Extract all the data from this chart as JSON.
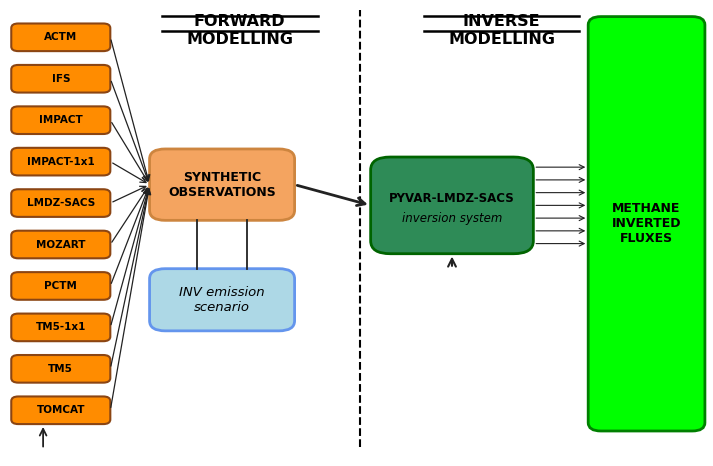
{
  "models": [
    "ACTM",
    "IFS",
    "IMPACT",
    "IMPACT-1x1",
    "LMDZ-SACS",
    "MOZART",
    "PCTM",
    "TM5-1x1",
    "TM5",
    "TOMCAT"
  ],
  "model_color": "#FF8C00",
  "model_edge_color": "#8B4513",
  "synth_obs_label": "SYNTHETIC\nOBSERVATIONS",
  "synth_obs_color": "#F4A460",
  "synth_obs_edge_color": "#CD853F",
  "inv_emission_label": "INV emission\nscenario",
  "inv_emission_color": "#ADD8E6",
  "inv_emission_edge_color": "#6495ED",
  "pyvar_label": "PYVAR-LMDZ-SACS\ninversion system",
  "pyvar_color": "#2E8B57",
  "pyvar_edge_color": "#006400",
  "methane_label": "METHANE\nINVERTED\nFLUXES",
  "methane_color": "#00FF00",
  "methane_edge_color": "#008000",
  "forward_title": "FORWARD\nMODELLING",
  "inverse_title": "INVERSE\nMODELLING",
  "bg_color": "#FFFFFF",
  "arrow_color": "#222222"
}
